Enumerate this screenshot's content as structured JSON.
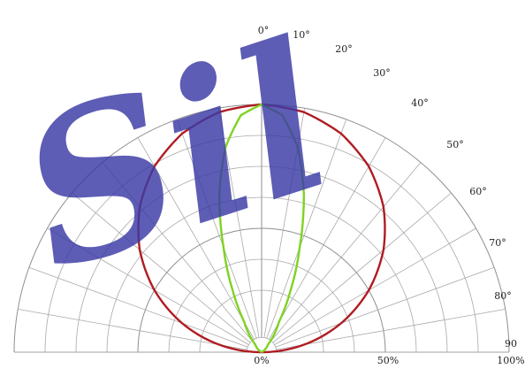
{
  "chart_data": {
    "type": "polar",
    "angle_unit": "deg",
    "angle_ticks": [
      "0°",
      "10°",
      "20°",
      "30°",
      "40°",
      "50°",
      "60°",
      "70°",
      "80°",
      "90"
    ],
    "radial_tick_labels": [
      "0%",
      "50%",
      "100%"
    ],
    "radial_range": [
      0,
      100
    ],
    "grid": true,
    "series": [
      {
        "color": "#b01c22",
        "angles": [
          0,
          10,
          20,
          30,
          40,
          50,
          60,
          70,
          80,
          90
        ],
        "values": [
          100,
          98.4,
          93.9,
          86.6,
          76.6,
          64.3,
          50.0,
          34.2,
          17.4,
          0
        ]
      },
      {
        "color": "#7ed321",
        "angles": [
          0,
          5,
          10,
          15,
          20,
          25,
          30,
          40,
          60,
          90
        ],
        "values": [
          100,
          96,
          84,
          66,
          45,
          28,
          14,
          4,
          0,
          0
        ]
      }
    ]
  },
  "watermark": {
    "text": "Sil"
  }
}
